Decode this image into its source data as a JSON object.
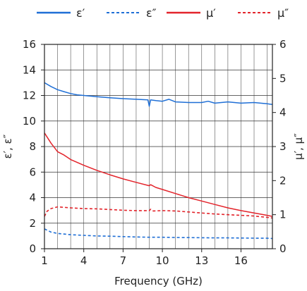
{
  "chart_data": {
    "type": "line",
    "xlabel": "Frequency (GHz)",
    "ylabel_left": "ε′, ε″",
    "ylabel_right": "μ′, μ″",
    "xlim": [
      1,
      18.4
    ],
    "ylim_left": [
      0,
      16
    ],
    "ylim_right": [
      0,
      6
    ],
    "xticks": [
      1,
      4,
      7,
      10,
      13,
      16
    ],
    "yticks_left": [
      0,
      2,
      4,
      6,
      8,
      10,
      12,
      14,
      16
    ],
    "yticks_right": [
      0,
      1,
      2,
      3,
      4,
      5,
      6
    ],
    "grid": true,
    "legend": "top",
    "series": [
      {
        "name": "ε′",
        "axis": "left",
        "color": "#1f6fd6",
        "dash": "solid",
        "x": [
          1,
          1.5,
          2,
          2.5,
          3,
          3.5,
          4,
          5,
          6,
          7,
          8,
          8.9,
          9.0,
          9.1,
          9.5,
          10,
          10.5,
          11,
          12,
          13,
          13.5,
          14,
          15,
          16,
          17,
          18,
          18.4
        ],
        "y": [
          13.0,
          12.7,
          12.45,
          12.3,
          12.15,
          12.05,
          12.0,
          11.9,
          11.82,
          11.75,
          11.7,
          11.65,
          11.15,
          11.65,
          11.6,
          11.55,
          11.7,
          11.5,
          11.45,
          11.45,
          11.55,
          11.4,
          11.5,
          11.4,
          11.45,
          11.35,
          11.3
        ]
      },
      {
        "name": "ε″",
        "axis": "left",
        "color": "#1f6fd6",
        "dash": "dashed",
        "x": [
          1,
          1.5,
          2,
          3,
          4,
          5,
          6,
          7,
          8,
          9,
          10,
          11,
          12,
          13,
          14,
          15,
          16,
          17,
          18,
          18.4
        ],
        "y": [
          1.55,
          1.3,
          1.2,
          1.1,
          1.05,
          1.0,
          0.98,
          0.95,
          0.92,
          0.9,
          0.9,
          0.88,
          0.87,
          0.86,
          0.85,
          0.85,
          0.84,
          0.83,
          0.82,
          0.8
        ]
      },
      {
        "name": "μ′",
        "axis": "right",
        "color": "#e3242b",
        "dash": "solid",
        "x": [
          1,
          1.5,
          2,
          2.5,
          3,
          4,
          5,
          6,
          7,
          8,
          9,
          9.1,
          9.5,
          10,
          11,
          12,
          13,
          14,
          15,
          16,
          17,
          18,
          18.4
        ],
        "y": [
          3.4,
          3.1,
          2.85,
          2.75,
          2.62,
          2.45,
          2.3,
          2.17,
          2.05,
          1.95,
          1.85,
          1.88,
          1.8,
          1.74,
          1.62,
          1.5,
          1.4,
          1.3,
          1.2,
          1.12,
          1.05,
          0.98,
          0.95
        ]
      },
      {
        "name": "μ″",
        "axis": "right",
        "color": "#e3242b",
        "dash": "dashed",
        "x": [
          1,
          1.2,
          1.5,
          2,
          3,
          4,
          5,
          6,
          7,
          8,
          9,
          9.1,
          9.3,
          10,
          11,
          12,
          13,
          14,
          15,
          16,
          17,
          18,
          18.4
        ],
        "y": [
          0.95,
          1.1,
          1.18,
          1.23,
          1.2,
          1.18,
          1.17,
          1.15,
          1.13,
          1.12,
          1.12,
          1.16,
          1.11,
          1.12,
          1.11,
          1.08,
          1.05,
          1.02,
          1.0,
          0.98,
          0.96,
          0.92,
          0.9
        ]
      }
    ]
  }
}
